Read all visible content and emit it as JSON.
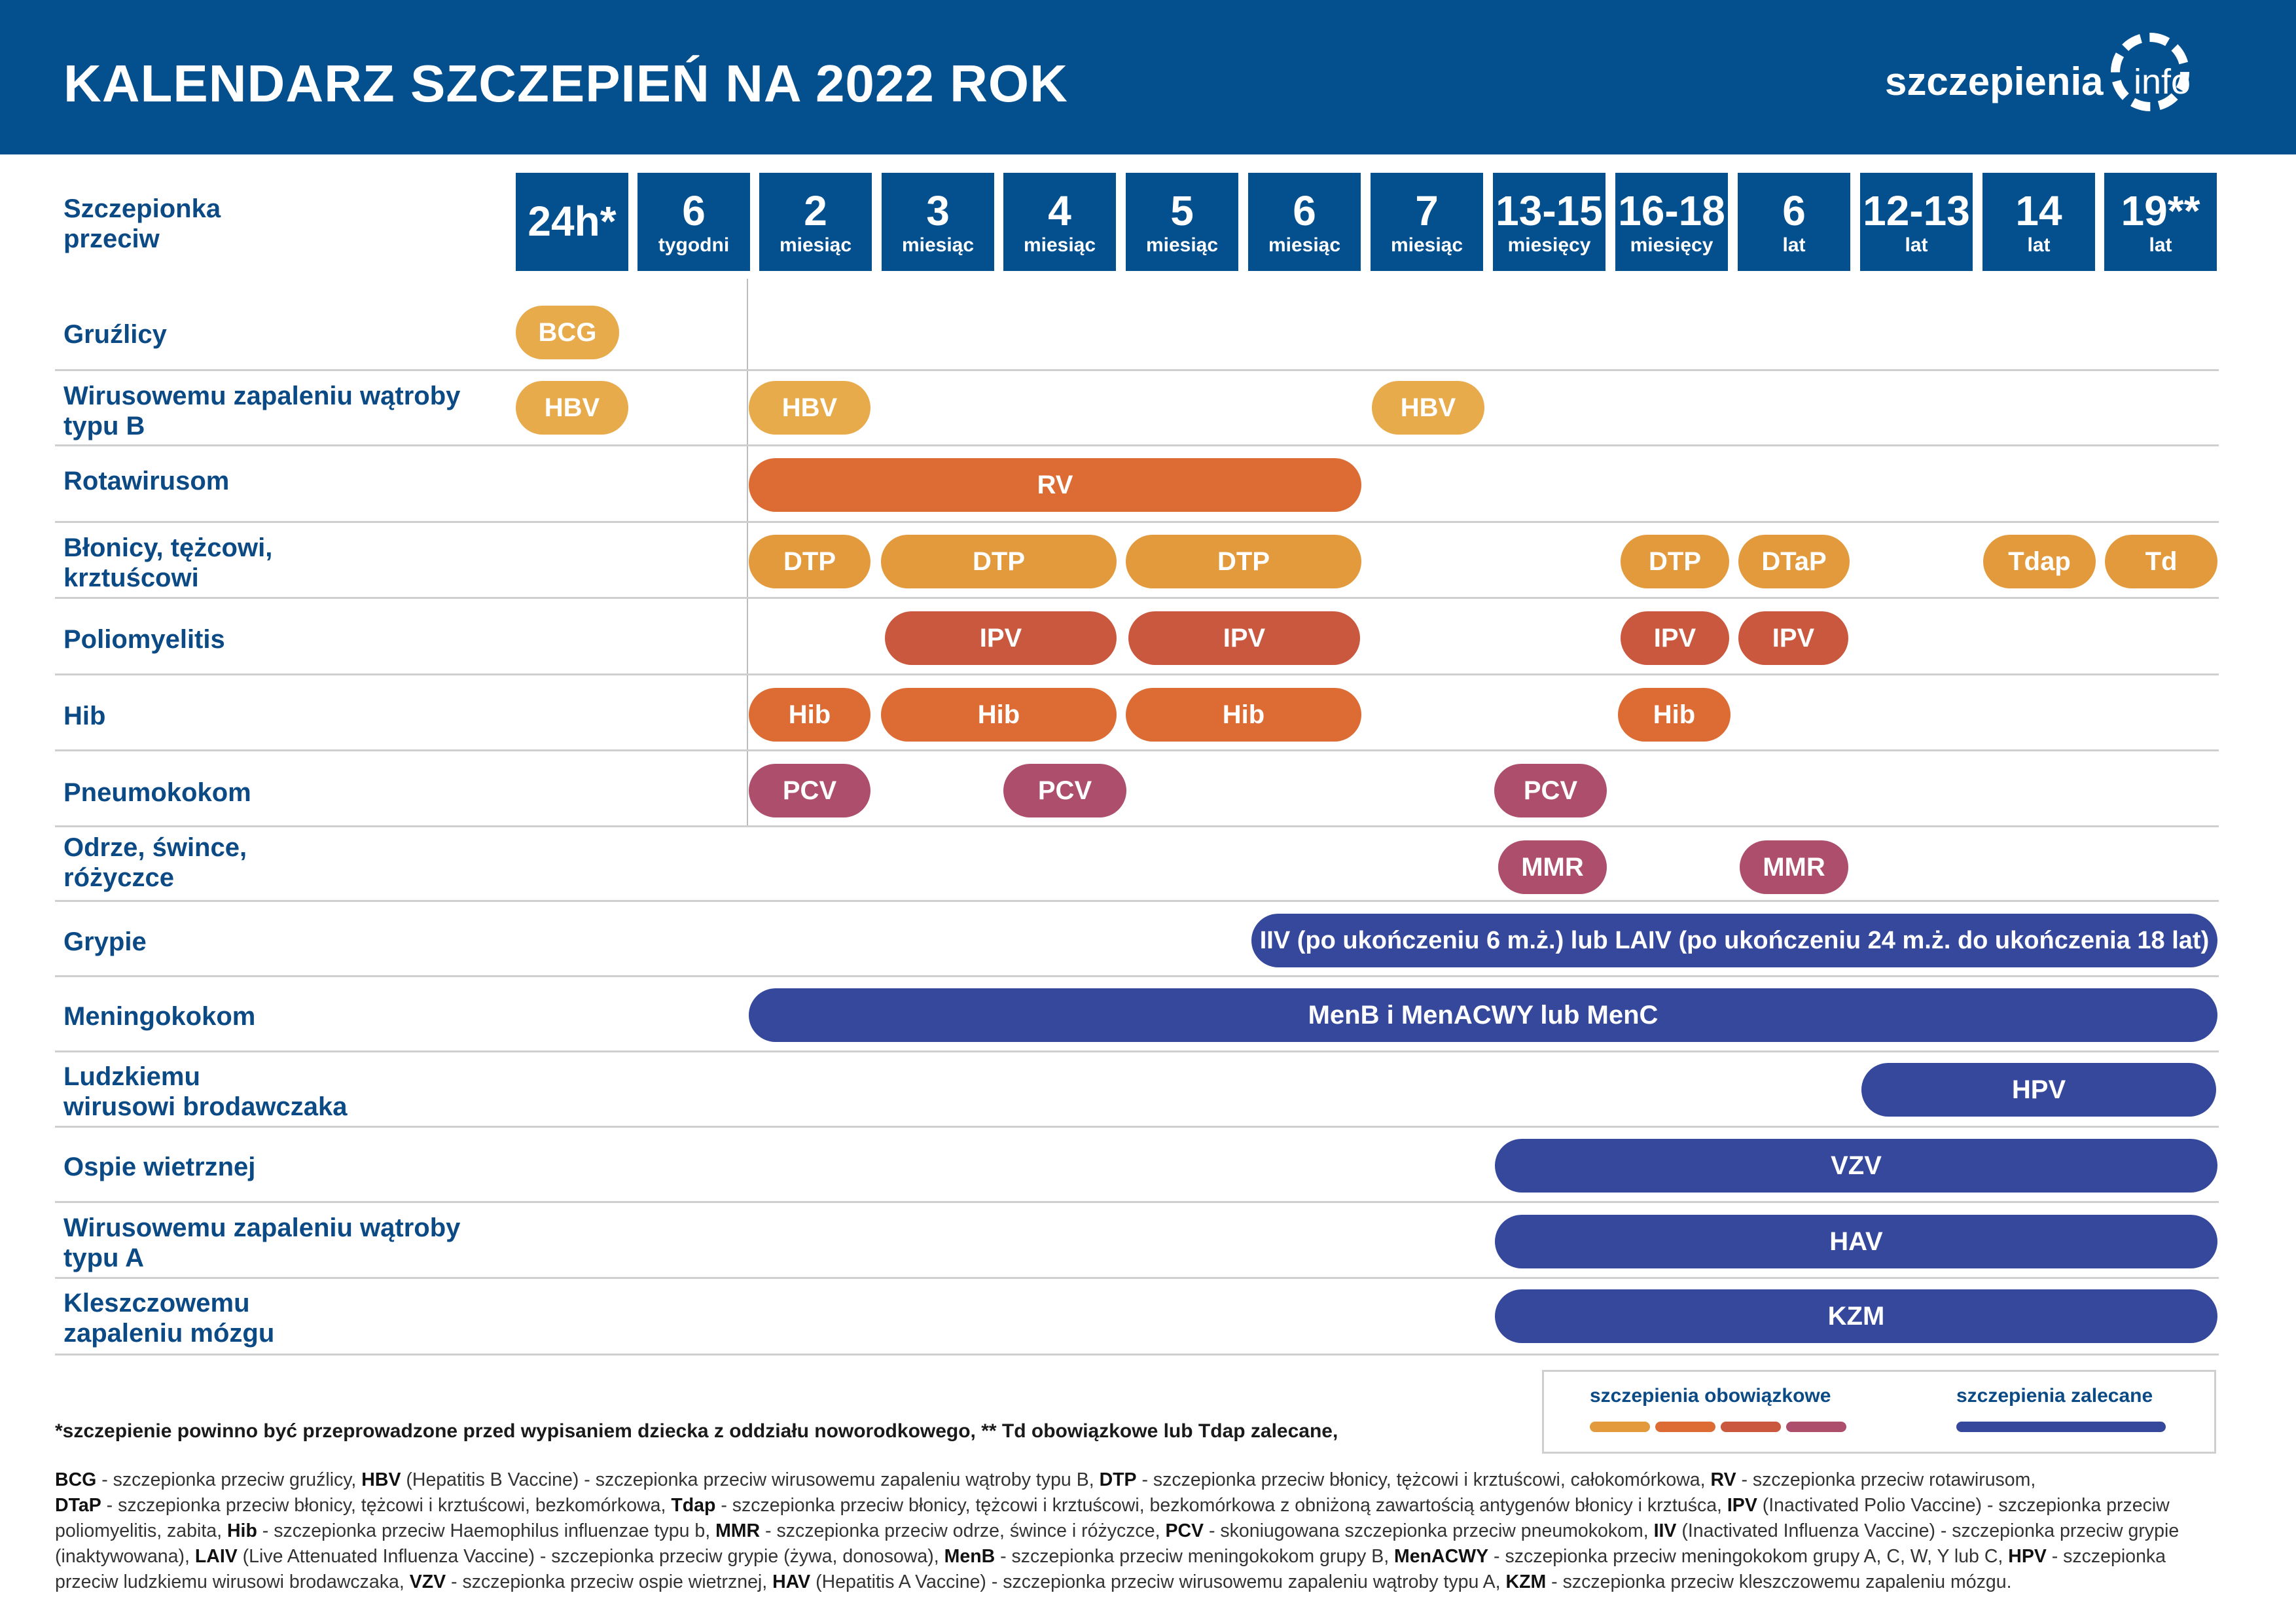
{
  "header": {
    "title": "KALENDARZ SZCZEPIEŃ NA 2022 ROK",
    "logo_text": "szczepienia",
    "logo_suffix": "info",
    "bg_color": "#04508f"
  },
  "column_header_label": "Szczepionka\nprzeciw",
  "ages": [
    {
      "big": "24h*",
      "small": ""
    },
    {
      "big": "6",
      "small": "tygodni"
    },
    {
      "big": "2",
      "small": "miesiąc"
    },
    {
      "big": "3",
      "small": "miesiąc"
    },
    {
      "big": "4",
      "small": "miesiąc"
    },
    {
      "big": "5",
      "small": "miesiąc"
    },
    {
      "big": "6",
      "small": "miesiąc"
    },
    {
      "big": "7",
      "small": "miesiąc"
    },
    {
      "big": "13-15",
      "small": "miesięcy"
    },
    {
      "big": "16-18",
      "small": "miesięcy"
    },
    {
      "big": "6",
      "small": "lat"
    },
    {
      "big": "12-13",
      "small": "lat"
    },
    {
      "big": "14",
      "small": "lat"
    },
    {
      "big": "19**",
      "small": "lat"
    }
  ],
  "rows": [
    {
      "label": "Gruźlicy"
    },
    {
      "label": "Wirusowemu zapaleniu wątroby\ntypu B"
    },
    {
      "label": "Rotawirusom"
    },
    {
      "label": "Błonicy, tężcowi,\nkrztuścowi"
    },
    {
      "label": "Poliomyelitis"
    },
    {
      "label": "Hib"
    },
    {
      "label": "Pneumokokom"
    },
    {
      "label": "Odrze, śwince,\nróżyczce"
    },
    {
      "label": "Grypie"
    },
    {
      "label": "Meningokokom"
    },
    {
      "label": "Ludzkiemu\nwirusowi brodawczaka"
    },
    {
      "label": "Ospie wietrznej"
    },
    {
      "label": "Wirusowemu zapaleniu wątroby\ntypu A"
    },
    {
      "label": "Kleszczowemu\nzapaleniu mózgu"
    }
  ],
  "pills": {
    "bcg": "BCG",
    "hbv1": "HBV",
    "hbv2": "HBV",
    "hbv3": "HBV",
    "rv": "RV",
    "dtp1": "DTP",
    "dtp2": "DTP",
    "dtp3": "DTP",
    "dtp4": "DTP",
    "dtap": "DTaP",
    "tdap": "Tdap",
    "td": "Td",
    "ipv1": "IPV",
    "ipv2": "IPV",
    "ipv3": "IPV",
    "ipv4": "IPV",
    "hib1": "Hib",
    "hib2": "Hib",
    "hib3": "Hib",
    "hib4": "Hib",
    "pcv1": "PCV",
    "pcv2": "PCV",
    "pcv3": "PCV",
    "mmr1": "MMR",
    "mmr2": "MMR",
    "flu": "IIV (po ukończeniu 6 m.ż.) lub LAIV (po ukończeniu 24 m.ż. do ukończenia 18 lat)",
    "men": "MenB i MenACWY lub MenC",
    "hpv": "HPV",
    "vzv": "VZV",
    "hav": "HAV",
    "kzm": "KZM"
  },
  "footnote": "*szczepienie powinno być przeprowadzone przed wypisaniem dziecka z oddziału noworodkowego, ** Td obowiązkowe lub Tdap zalecane,",
  "legend": {
    "mandatory": "szczepienia obowiązkowe",
    "recommended": "szczepienia zalecane",
    "mandatory_colors": [
      "#e29a3c",
      "#dd6c34",
      "#c9583f",
      "#ac4e6c"
    ],
    "recommended_color": "#35489c"
  },
  "abbreviations": [
    {
      "abbr": "BCG",
      "desc": " - szczepionka przeciw gruźlicy, "
    },
    {
      "abbr": "HBV",
      "desc": " (Hepatitis B Vaccine) - szczepionka przeciw wirusowemu zapaleniu wątroby typu B, "
    },
    {
      "abbr": "DTP",
      "desc": " - szczepionka przeciw błonicy, tężcowi i krztuścowi, całokomórkowa, "
    },
    {
      "abbr": "RV",
      "desc": " - szczepionka przeciw rotawirusom, "
    },
    {
      "abbr": "DTaP",
      "desc": " - szczepionka przeciw błonicy, tężcowi i krztuścowi, bezkomórkowa, "
    },
    {
      "abbr": "Tdap",
      "desc": " - szczepionka przeciw błonicy, tężcowi i krztuścowi, bezkomórkowa z obniżoną zawartością antygenów błonicy i krztuśca, "
    },
    {
      "abbr": "IPV",
      "desc": " (Inactivated Polio Vaccine) - szczepionka przeciw poliomyelitis, zabita, "
    },
    {
      "abbr": "Hib",
      "desc": " - szczepionka przeciw Haemophilus influenzae typu b, "
    },
    {
      "abbr": "MMR",
      "desc": " - szczepionka przeciw odrze, śwince i różyczce, "
    },
    {
      "abbr": "PCV",
      "desc": " - skoniugowana szczepionka przeciw pneumokokom,  "
    },
    {
      "abbr": "IIV",
      "desc": " (Inactivated Influenza Vaccine) - szczepionka przeciw grypie (inaktywowana), "
    },
    {
      "abbr": "LAIV",
      "desc": " (Live Attenuated Influenza Vaccine) - szczepionka przeciw grypie (żywa, donosowa), "
    },
    {
      "abbr": "MenB",
      "desc": " - szczepionka przeciw meningokokom grupy B, "
    },
    {
      "abbr": "MenACWY",
      "desc": " - szczepionka przeciw meningokokom grupy A, C, W, Y lub C, "
    },
    {
      "abbr": "HPV",
      "desc": " - szczepionka przeciw ludzkiemu wirusowi brodawczaka, "
    },
    {
      "abbr": "VZV",
      "desc": " - szczepionka przeciw ospie wietrznej, "
    },
    {
      "abbr": "HAV",
      "desc": " (Hepatitis A Vaccine) - szczepionka przeciw wirusowemu zapaleniu wątroby typu A, "
    },
    {
      "abbr": "KZM",
      "desc": " - szczepionka przeciw kleszczowemu zapaleniu mózgu."
    }
  ]
}
